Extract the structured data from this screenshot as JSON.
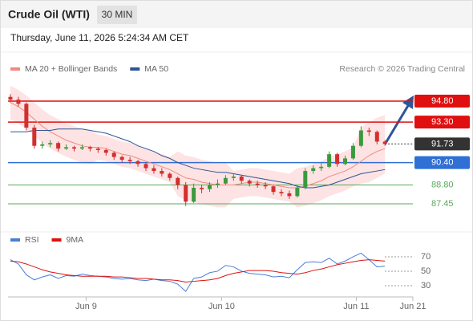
{
  "header": {
    "title": "Crude Oil (WTI)",
    "interval": "30 MIN",
    "datetime": "Thursday, June 11, 2026 5:24:34 AM CET"
  },
  "chart_data": [
    {
      "type": "candlestick",
      "credit": "Research © 2026 Trading Central",
      "xlim": [
        -0.3,
        50.5
      ],
      "ylim": [
        85.67,
        96.29
      ],
      "up_color": "#3c9a3c",
      "down_color": "#d32f2f",
      "candles": [
        [
          95.1,
          95.3,
          94.7,
          94.9
        ],
        [
          94.9,
          95.1,
          94.4,
          94.6
        ],
        [
          94.6,
          94.7,
          92.7,
          92.9
        ],
        [
          92.9,
          93.1,
          91.4,
          91.6
        ],
        [
          91.6,
          91.9,
          91.4,
          91.7
        ],
        [
          91.7,
          92.0,
          91.5,
          91.8
        ],
        [
          91.8,
          91.9,
          91.2,
          91.4
        ],
        [
          91.4,
          91.7,
          91.3,
          91.5
        ],
        [
          91.5,
          91.6,
          91.2,
          91.4
        ],
        [
          91.4,
          91.7,
          91.3,
          91.5
        ],
        [
          91.5,
          91.6,
          91.2,
          91.4
        ],
        [
          91.4,
          91.5,
          91.1,
          91.3
        ],
        [
          91.3,
          91.4,
          90.9,
          91.1
        ],
        [
          91.1,
          91.2,
          90.6,
          90.8
        ],
        [
          90.8,
          90.9,
          90.4,
          90.6
        ],
        [
          90.6,
          90.8,
          90.3,
          90.5
        ],
        [
          90.5,
          90.6,
          90.1,
          90.3
        ],
        [
          90.3,
          90.4,
          89.8,
          90.0
        ],
        [
          90.0,
          90.2,
          89.6,
          89.8
        ],
        [
          89.8,
          90.0,
          89.4,
          89.6
        ],
        [
          89.6,
          89.7,
          89.1,
          89.3
        ],
        [
          89.3,
          89.4,
          88.5,
          88.8
        ],
        [
          88.8,
          89.0,
          87.3,
          87.6
        ],
        [
          87.6,
          88.9,
          87.5,
          88.6
        ],
        [
          88.6,
          88.8,
          88.2,
          88.5
        ],
        [
          88.5,
          89.0,
          88.3,
          88.8
        ],
        [
          88.8,
          89.2,
          88.6,
          88.9
        ],
        [
          88.9,
          89.5,
          88.8,
          89.3
        ],
        [
          89.3,
          89.6,
          89.1,
          89.4
        ],
        [
          89.4,
          89.5,
          88.9,
          89.1
        ],
        [
          89.1,
          89.2,
          88.7,
          88.9
        ],
        [
          88.9,
          89.1,
          88.6,
          88.8
        ],
        [
          88.8,
          89.0,
          88.5,
          88.7
        ],
        [
          88.7,
          88.8,
          88.1,
          88.3
        ],
        [
          88.3,
          88.5,
          88.0,
          88.2
        ],
        [
          88.2,
          88.4,
          87.8,
          88.0
        ],
        [
          88.0,
          88.8,
          87.9,
          88.6
        ],
        [
          88.6,
          90.0,
          88.5,
          89.8
        ],
        [
          89.8,
          90.2,
          89.6,
          90.0
        ],
        [
          90.0,
          90.4,
          89.8,
          90.1
        ],
        [
          90.1,
          91.2,
          90.0,
          91.0
        ],
        [
          91.0,
          91.1,
          90.1,
          90.3
        ],
        [
          90.3,
          90.9,
          90.2,
          90.7
        ],
        [
          90.7,
          91.8,
          90.6,
          91.6
        ],
        [
          91.6,
          93.0,
          91.5,
          92.7
        ],
        [
          92.7,
          92.9,
          92.3,
          92.6
        ],
        [
          92.6,
          92.7,
          91.7,
          91.9
        ],
        [
          91.9,
          92.0,
          91.6,
          91.73
        ]
      ],
      "series": [
        {
          "name": "MA 20 + Bollinger Bands",
          "color": "#f08a80",
          "band_color": "#fde3e3",
          "values": [
            94.7,
            94.4,
            94.0,
            93.5,
            93.0,
            92.6,
            92.3,
            92.0,
            91.8,
            91.6,
            91.5,
            91.5,
            91.4,
            91.2,
            91.0,
            90.9,
            90.7,
            90.5,
            90.3,
            90.1,
            89.9,
            89.6,
            89.3,
            89.2,
            89.0,
            88.9,
            88.8,
            88.8,
            88.8,
            88.9,
            89.0,
            89.0,
            88.9,
            88.8,
            88.7,
            88.6,
            88.6,
            88.7,
            88.9,
            89.1,
            89.4,
            89.6,
            89.8,
            90.1,
            90.5,
            90.9,
            91.2,
            91.4
          ],
          "upper": [
            95.9,
            95.6,
            95.2,
            94.7,
            94.2,
            93.8,
            93.5,
            93.2,
            93.0,
            92.8,
            92.7,
            92.4,
            92.3,
            92.1,
            91.9,
            91.8,
            91.6,
            91.4,
            91.2,
            91.0,
            90.8,
            91.2,
            90.9,
            90.8,
            90.6,
            90.5,
            90.4,
            90.4,
            89.8,
            89.9,
            90.0,
            90.0,
            89.9,
            89.8,
            89.7,
            89.6,
            90.0,
            90.1,
            90.3,
            90.5,
            90.8,
            91.0,
            91.2,
            91.5,
            92.9,
            93.3,
            93.6,
            93.8
          ],
          "lower": [
            93.5,
            93.2,
            92.8,
            92.3,
            91.8,
            91.4,
            91.1,
            90.8,
            90.6,
            90.4,
            90.3,
            90.6,
            90.5,
            90.3,
            90.1,
            90.0,
            89.8,
            89.6,
            89.4,
            89.2,
            89.0,
            88.0,
            87.7,
            87.6,
            87.4,
            87.3,
            87.2,
            87.2,
            87.8,
            87.9,
            88.0,
            88.0,
            87.9,
            87.8,
            87.7,
            87.6,
            87.2,
            87.3,
            87.5,
            87.7,
            88.0,
            88.2,
            88.4,
            88.7,
            88.9,
            89.0,
            89.3,
            89.6
          ]
        },
        {
          "name": "MA 50",
          "color": "#2f5597",
          "values": [
            92.6,
            92.6,
            92.6,
            92.7,
            92.7,
            92.7,
            92.8,
            92.8,
            92.8,
            92.8,
            92.7,
            92.6,
            92.5,
            92.3,
            92.1,
            91.9,
            91.6,
            91.4,
            91.2,
            90.9,
            90.7,
            90.4,
            90.2,
            90.0,
            89.9,
            89.8,
            89.7,
            89.7,
            89.6,
            89.5,
            89.4,
            89.3,
            89.2,
            89.1,
            89.0,
            88.9,
            88.7,
            88.6,
            88.6,
            88.7,
            88.8,
            89.0,
            89.2,
            89.4,
            89.6,
            89.7,
            89.8,
            89.9
          ]
        }
      ],
      "levels": [
        {
          "value": 94.8,
          "label": "94.80",
          "color": "#e01010",
          "label_style": "box"
        },
        {
          "value": 93.3,
          "label": "93.30",
          "color": "#e01010",
          "label_style": "box"
        },
        {
          "value": 91.73,
          "label": "91.73",
          "color": "#333333",
          "label_style": "box",
          "dash": true
        },
        {
          "value": 90.4,
          "label": "90.40",
          "color": "#2f6fd6",
          "label_style": "box"
        },
        {
          "value": 88.8,
          "label": "88.80",
          "color": "#5aa95a",
          "label_style": "plain"
        },
        {
          "value": 87.45,
          "label": "87.45",
          "color": "#5aa95a",
          "label_style": "plain"
        }
      ]
    },
    {
      "type": "line",
      "xlim": [
        -0.3,
        50.5
      ],
      "ylim": [
        14.4,
        83.3
      ],
      "yticks": [
        70,
        50,
        30
      ],
      "xticks": [
        {
          "value": 9.5,
          "label": "Jun 9"
        },
        {
          "value": 26.5,
          "label": "Jun 10"
        },
        {
          "value": 43.4,
          "label": "Jun 11"
        },
        {
          "value": 50.5,
          "label": "Jun 21"
        }
      ],
      "series": [
        {
          "name": "RSI",
          "color": "#4a7fd6",
          "values": [
            66,
            60,
            45,
            38,
            42,
            45,
            40,
            44,
            43,
            46,
            44,
            43,
            42,
            40,
            39,
            40,
            38,
            37,
            39,
            37,
            36,
            32,
            22,
            40,
            42,
            48,
            50,
            58,
            56,
            50,
            47,
            46,
            45,
            42,
            43,
            41,
            52,
            62,
            63,
            62,
            68,
            60,
            64,
            70,
            75,
            66,
            56,
            57
          ]
        },
        {
          "name": "9MA",
          "color": "#e01010",
          "values": [
            64,
            63,
            60,
            56,
            52,
            49,
            47,
            45,
            44,
            43,
            43,
            43,
            43,
            42,
            42,
            41,
            40,
            40,
            39,
            38,
            38,
            37,
            35,
            36,
            37,
            38,
            40,
            44,
            47,
            49,
            51,
            51,
            51,
            50,
            48,
            47,
            46,
            48,
            51,
            53,
            56,
            59,
            61,
            63,
            65,
            66,
            65,
            64
          ]
        }
      ]
    }
  ]
}
